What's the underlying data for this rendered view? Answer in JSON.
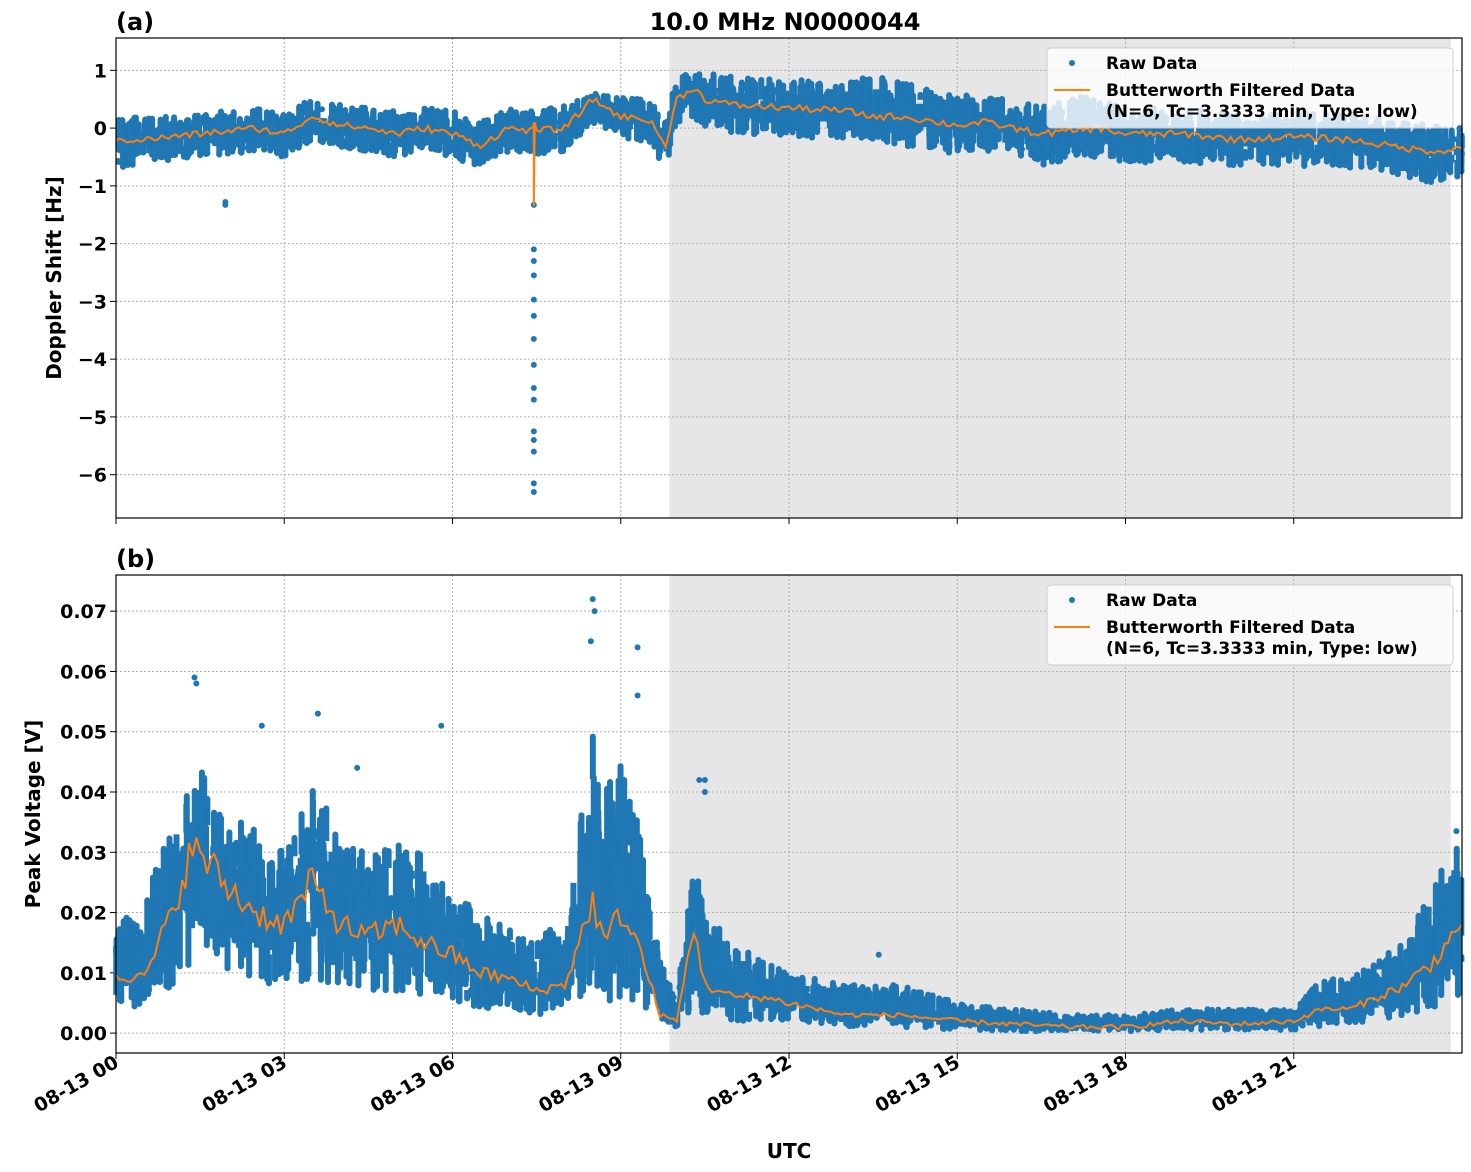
{
  "chart_data": [
    {
      "type": "scatter",
      "panel_label": "(a)",
      "title": "10.0 MHz N0000044",
      "xlabel": "",
      "ylabel": "Doppler Shift [Hz]",
      "xlim": [
        "08-13 00:00",
        "08-14 00:00"
      ],
      "ylim": [
        -6.75,
        1.56
      ],
      "yticks": [
        1,
        0,
        -1,
        -2,
        -3,
        -4,
        -5,
        -6
      ],
      "ytick_labels": [
        "1",
        "0",
        "−1",
        "−2",
        "−3",
        "−4",
        "−5",
        "−6"
      ],
      "grid": true,
      "shaded_span": [
        "08-13 09:52",
        "08-13 23:48"
      ],
      "legend": {
        "position": "top-right",
        "entries": [
          "Raw Data",
          "Butterworth Filtered Data",
          "(N=6, Tc=3.3333 min, Type: low)"
        ]
      },
      "colors": {
        "raw": "#1f77b4",
        "filtered": "#ff7f0e",
        "shade": "#e6e6e6"
      },
      "x": [
        "08-13 00:00",
        "08-13 00:30",
        "08-13 01:00",
        "08-13 01:30",
        "08-13 02:00",
        "08-13 02:30",
        "08-13 03:00",
        "08-13 03:30",
        "08-13 04:00",
        "08-13 04:30",
        "08-13 05:00",
        "08-13 05:30",
        "08-13 06:00",
        "08-13 06:30",
        "08-13 07:00",
        "08-13 07:30",
        "08-13 08:00",
        "08-13 08:30",
        "08-13 09:00",
        "08-13 09:30",
        "08-13 09:48",
        "08-13 10:00",
        "08-13 10:18",
        "08-13 10:30",
        "08-13 11:00",
        "08-13 12:00",
        "08-13 13:00",
        "08-13 13:30",
        "08-13 14:00",
        "08-13 15:00",
        "08-13 15:30",
        "08-13 16:00",
        "08-13 16:30",
        "08-13 17:00",
        "08-13 17:30",
        "08-13 18:00",
        "08-13 19:00",
        "08-13 20:00",
        "08-13 21:00",
        "08-13 22:00",
        "08-13 23:00",
        "08-13 23:30",
        "08-14 00:00"
      ],
      "series": [
        {
          "name": "Butterworth Filtered Data",
          "kind": "line",
          "values": [
            -0.2,
            -0.2,
            -0.15,
            -0.1,
            -0.05,
            0.0,
            -0.1,
            0.2,
            0.05,
            0.0,
            -0.1,
            0.0,
            -0.1,
            -0.3,
            0.0,
            -0.05,
            0.0,
            0.5,
            0.2,
            0.15,
            -0.3,
            0.5,
            0.7,
            0.5,
            0.4,
            0.35,
            0.3,
            0.2,
            0.2,
            0.05,
            0.1,
            0.0,
            -0.1,
            -0.05,
            0.0,
            -0.1,
            -0.1,
            -0.2,
            -0.15,
            -0.2,
            -0.35,
            -0.4,
            -0.35
          ]
        },
        {
          "name": "Raw Data",
          "kind": "scatter-band",
          "lower": [
            -0.7,
            -0.6,
            -0.55,
            -0.5,
            -0.45,
            -0.4,
            -0.5,
            -0.2,
            -0.35,
            -0.4,
            -0.5,
            -0.4,
            -0.5,
            -0.7,
            -0.4,
            -0.45,
            -0.4,
            0.1,
            -0.2,
            -0.25,
            -0.7,
            0.0,
            0.2,
            0.0,
            -0.1,
            -0.15,
            -0.2,
            -0.3,
            -0.3,
            -0.45,
            -0.4,
            -0.5,
            -0.65,
            -0.55,
            -0.5,
            -0.6,
            -0.6,
            -0.7,
            -0.65,
            -0.7,
            -0.85,
            -0.95,
            -0.85
          ],
          "upper": [
            0.15,
            0.2,
            0.2,
            0.25,
            0.3,
            0.35,
            0.3,
            0.55,
            0.4,
            0.35,
            0.3,
            0.35,
            0.3,
            0.1,
            0.35,
            0.3,
            0.4,
            0.6,
            0.55,
            0.5,
            0.1,
            0.9,
            1.0,
            0.95,
            0.9,
            0.85,
            0.8,
            0.9,
            0.8,
            0.55,
            0.6,
            0.45,
            0.4,
            0.5,
            0.6,
            0.35,
            0.35,
            0.25,
            0.3,
            0.25,
            0.1,
            0.05,
            0.1
          ]
        },
        {
          "name": "Raw Data outliers",
          "kind": "scatter",
          "points": [
            [
              "08-13 01:57",
              -1.28
            ],
            [
              "08-13 01:57",
              -1.33
            ],
            [
              "08-13 07:27",
              -2.1
            ],
            [
              "08-13 07:27",
              -2.3
            ],
            [
              "08-13 07:27",
              -2.55
            ],
            [
              "08-13 07:27",
              -2.97
            ],
            [
              "08-13 07:27",
              -3.25
            ],
            [
              "08-13 07:27",
              -3.65
            ],
            [
              "08-13 07:27",
              -4.1
            ],
            [
              "08-13 07:27",
              -4.5
            ],
            [
              "08-13 07:27",
              -4.7
            ],
            [
              "08-13 07:27",
              -5.25
            ],
            [
              "08-13 07:27",
              -5.4
            ],
            [
              "08-13 07:27",
              -5.6
            ],
            [
              "08-13 07:27",
              -6.15
            ],
            [
              "08-13 07:27",
              -6.3
            ],
            [
              "08-13 07:27",
              -1.33
            ]
          ]
        }
      ]
    },
    {
      "type": "scatter",
      "panel_label": "(b)",
      "xlabel": "UTC",
      "ylabel": "Peak Voltage [V]",
      "xlim": [
        "08-13 00:00",
        "08-14 00:00"
      ],
      "ylim": [
        -0.0033,
        0.076
      ],
      "yticks": [
        0.07,
        0.06,
        0.05,
        0.04,
        0.03,
        0.02,
        0.01,
        0.0
      ],
      "ytick_labels": [
        "0.07",
        "0.06",
        "0.05",
        "0.04",
        "0.03",
        "0.02",
        "0.01",
        "0.00"
      ],
      "xticks": [
        "08-13 00",
        "08-13 03",
        "08-13 06",
        "08-13 09",
        "08-13 12",
        "08-13 15",
        "08-13 18",
        "08-13 21"
      ],
      "grid": true,
      "shaded_span": [
        "08-13 09:52",
        "08-13 23:48"
      ],
      "legend": {
        "position": "top-right",
        "entries": [
          "Raw Data",
          "Butterworth Filtered Data",
          "(N=6, Tc=3.3333 min, Type: low)"
        ]
      },
      "x": [
        "08-13 00:00",
        "08-13 00:30",
        "08-13 01:00",
        "08-13 01:18",
        "08-13 01:30",
        "08-13 02:00",
        "08-13 02:30",
        "08-13 03:00",
        "08-13 03:30",
        "08-13 04:00",
        "08-13 04:30",
        "08-13 05:00",
        "08-13 05:30",
        "08-13 06:00",
        "08-13 06:30",
        "08-13 07:00",
        "08-13 07:30",
        "08-13 08:00",
        "08-13 08:30",
        "08-13 08:42",
        "08-13 09:00",
        "08-13 09:18",
        "08-13 09:42",
        "08-13 10:00",
        "08-13 10:18",
        "08-13 10:30",
        "08-13 11:00",
        "08-13 11:30",
        "08-13 12:00",
        "08-13 13:00",
        "08-13 14:00",
        "08-13 15:00",
        "08-13 16:00",
        "08-13 17:00",
        "08-13 18:00",
        "08-13 19:00",
        "08-13 20:00",
        "08-13 21:00",
        "08-13 21:30",
        "08-13 22:00",
        "08-13 22:30",
        "08-13 23:00",
        "08-13 23:30",
        "08-14 00:00"
      ],
      "series": [
        {
          "name": "Butterworth Filtered Data",
          "kind": "line",
          "values": [
            0.01,
            0.009,
            0.02,
            0.029,
            0.03,
            0.024,
            0.02,
            0.018,
            0.025,
            0.018,
            0.016,
            0.018,
            0.015,
            0.013,
            0.01,
            0.009,
            0.007,
            0.008,
            0.022,
            0.015,
            0.02,
            0.015,
            0.003,
            0.002,
            0.018,
            0.008,
            0.006,
            0.006,
            0.005,
            0.003,
            0.003,
            0.002,
            0.0015,
            0.001,
            0.001,
            0.002,
            0.0015,
            0.002,
            0.004,
            0.004,
            0.006,
            0.008,
            0.012,
            0.018
          ]
        },
        {
          "name": "Raw Data",
          "kind": "scatter-band",
          "lower": [
            0.004,
            0.004,
            0.008,
            0.011,
            0.012,
            0.01,
            0.008,
            0.008,
            0.009,
            0.008,
            0.007,
            0.007,
            0.006,
            0.005,
            0.004,
            0.004,
            0.003,
            0.004,
            0.006,
            0.005,
            0.006,
            0.005,
            0.001,
            0.001,
            0.004,
            0.003,
            0.002,
            0.002,
            0.002,
            0.001,
            0.001,
            0.0005,
            0.0003,
            0.0003,
            0.0003,
            0.0005,
            0.0005,
            0.0005,
            0.001,
            0.0015,
            0.002,
            0.003,
            0.004,
            0.006
          ],
          "upper": [
            0.018,
            0.022,
            0.035,
            0.045,
            0.045,
            0.038,
            0.034,
            0.03,
            0.042,
            0.033,
            0.03,
            0.032,
            0.03,
            0.024,
            0.02,
            0.018,
            0.015,
            0.02,
            0.05,
            0.04,
            0.045,
            0.035,
            0.012,
            0.006,
            0.03,
            0.02,
            0.015,
            0.012,
            0.01,
            0.008,
            0.008,
            0.005,
            0.004,
            0.003,
            0.003,
            0.004,
            0.004,
            0.004,
            0.009,
            0.009,
            0.012,
            0.016,
            0.025,
            0.033
          ]
        },
        {
          "name": "Raw Data outliers",
          "kind": "scatter",
          "points": [
            [
              "08-13 01:24",
              0.059
            ],
            [
              "08-13 01:26",
              0.058
            ],
            [
              "08-13 02:36",
              0.051
            ],
            [
              "08-13 03:36",
              0.053
            ],
            [
              "08-13 04:18",
              0.044
            ],
            [
              "08-13 05:48",
              0.051
            ],
            [
              "08-13 08:30",
              0.072
            ],
            [
              "08-13 08:32",
              0.07
            ],
            [
              "08-13 08:28",
              0.065
            ],
            [
              "08-13 09:18",
              0.064
            ],
            [
              "08-13 09:18",
              0.056
            ],
            [
              "08-13 10:24",
              0.042
            ],
            [
              "08-13 10:30",
              0.042
            ],
            [
              "08-13 10:30",
              0.04
            ],
            [
              "08-13 13:36",
              0.013
            ],
            [
              "08-13 23:54",
              0.0335
            ]
          ]
        }
      ]
    }
  ]
}
